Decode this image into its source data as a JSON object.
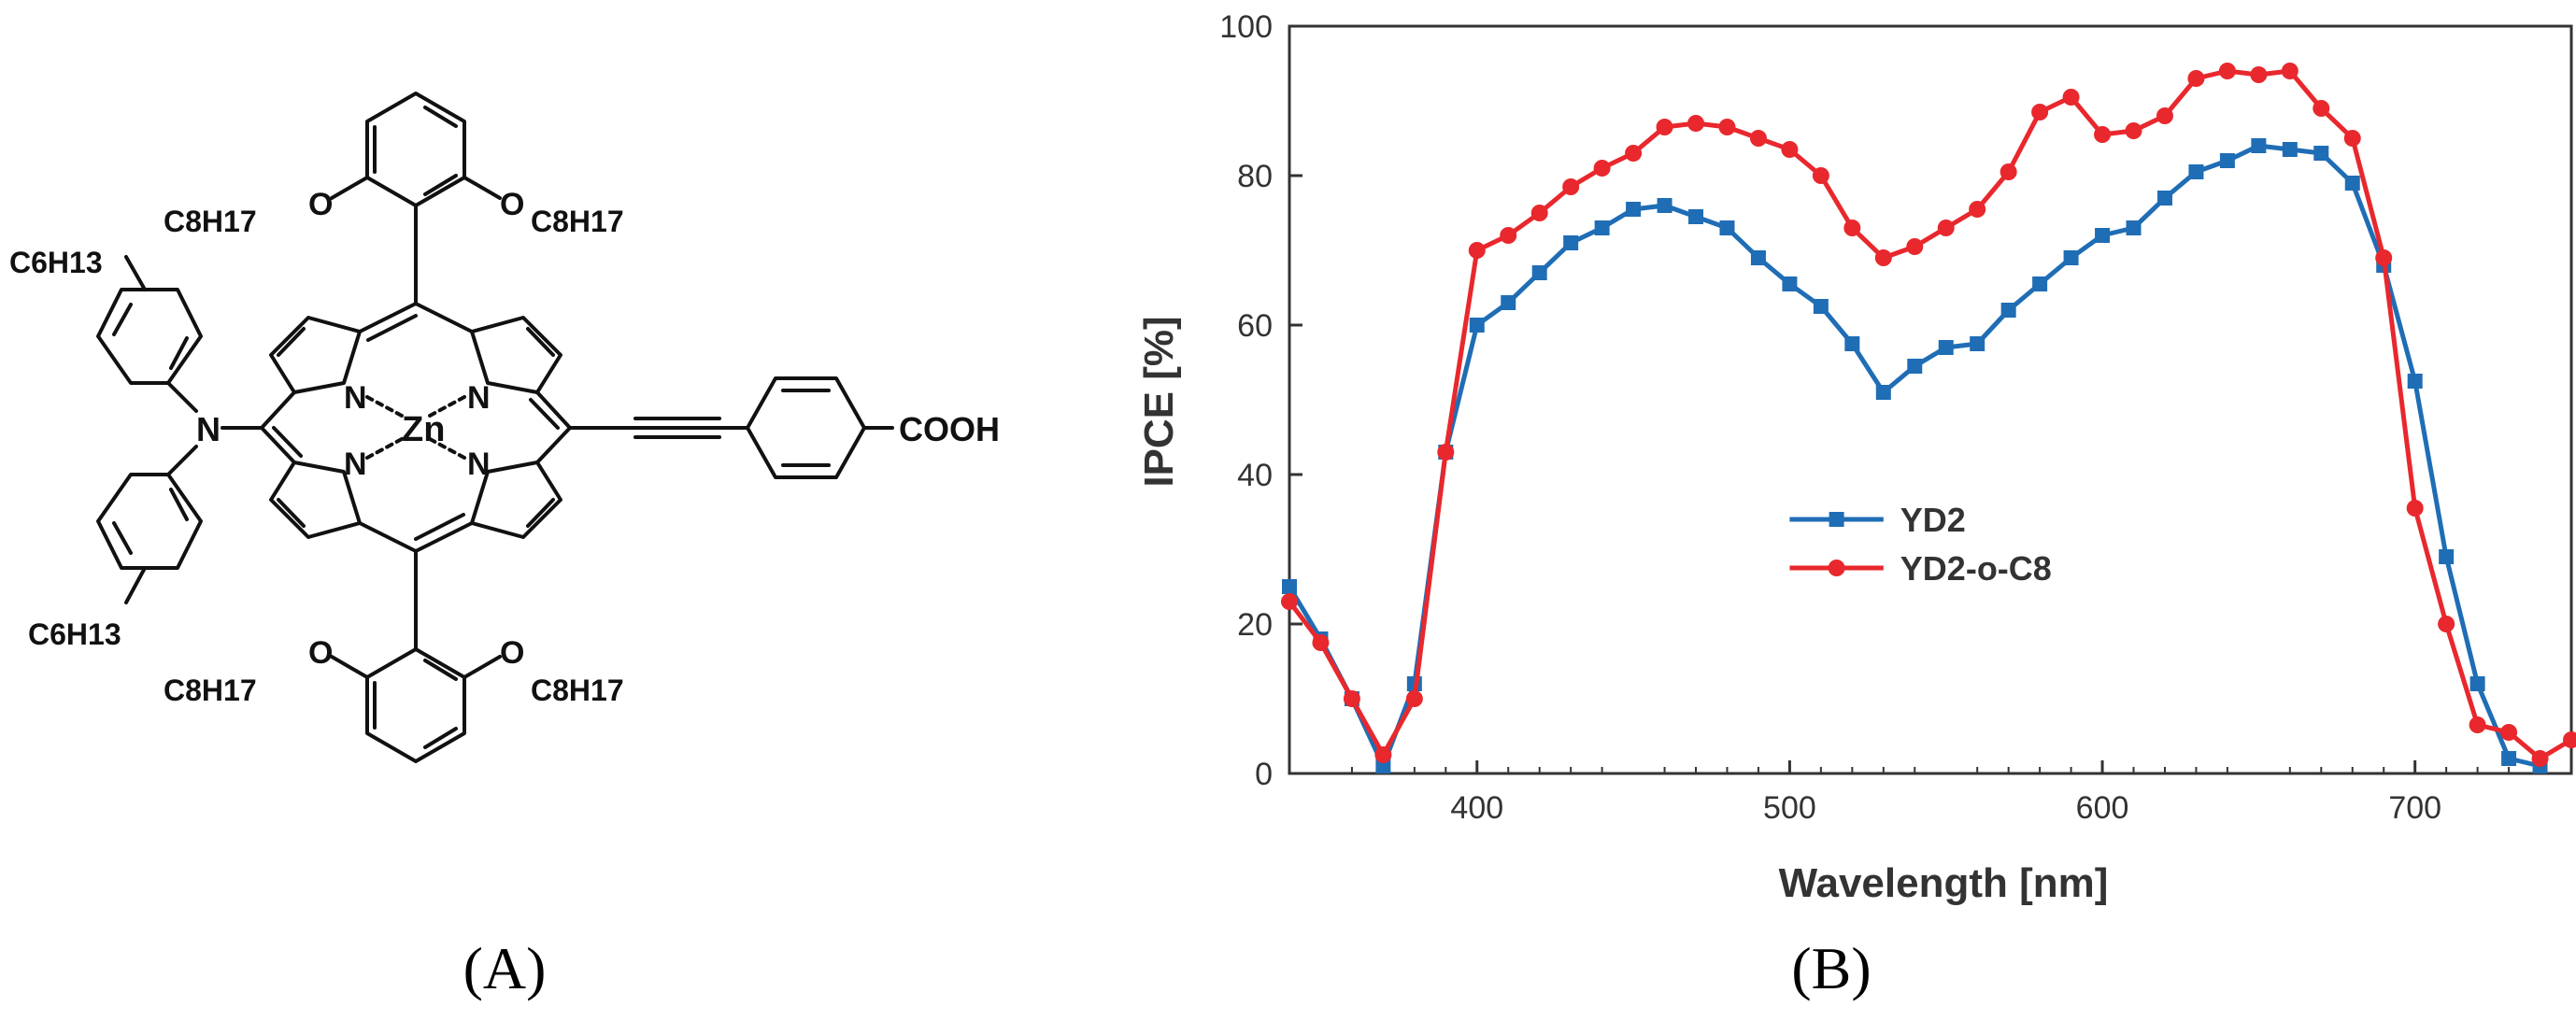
{
  "panels": {
    "a_label": "(A)",
    "b_label": "(B)"
  },
  "molecule": {
    "metal": "Zn",
    "nitrogen": "N",
    "oxygen": "O",
    "amine_n": "N",
    "acid_group": "COOH",
    "alkoxy_chain": "C8H17",
    "alkyl_chain": "C6H13"
  },
  "chart_data": {
    "type": "line",
    "xlabel": "Wavelength [nm]",
    "ylabel": "IPCE [%]",
    "xlim": [
      340,
      750
    ],
    "ylim": [
      0,
      100
    ],
    "x_ticks": [
      400,
      500,
      600,
      700
    ],
    "y_ticks": [
      0,
      20,
      40,
      60,
      80,
      100
    ],
    "legend_placement": "center",
    "grid": false,
    "series": [
      {
        "name": "YD2",
        "color": "#1f6db5",
        "marker": "square",
        "x": [
          340,
          350,
          360,
          370,
          380,
          390,
          400,
          410,
          420,
          430,
          440,
          450,
          460,
          470,
          480,
          490,
          500,
          510,
          520,
          530,
          540,
          550,
          560,
          570,
          580,
          590,
          600,
          610,
          620,
          630,
          640,
          650,
          660,
          670,
          680,
          690,
          700,
          710,
          720,
          730,
          740
        ],
        "y": [
          25,
          18,
          10,
          1,
          12,
          43,
          60,
          63,
          67,
          71,
          73,
          75.5,
          76,
          74.5,
          73,
          69,
          65.5,
          62.5,
          57.5,
          51,
          54.5,
          57,
          57.5,
          62,
          65.5,
          69,
          72,
          73,
          77,
          80.5,
          82,
          84,
          83.5,
          83,
          79,
          68,
          52.5,
          29,
          12,
          2,
          1
        ]
      },
      {
        "name": "YD2-o-C8",
        "color": "#e8282d",
        "marker": "circle",
        "x": [
          340,
          350,
          360,
          370,
          380,
          390,
          400,
          410,
          420,
          430,
          440,
          450,
          460,
          470,
          480,
          490,
          500,
          510,
          520,
          530,
          540,
          550,
          560,
          570,
          580,
          590,
          600,
          610,
          620,
          630,
          640,
          650,
          660,
          670,
          680,
          690,
          700,
          710,
          720,
          730,
          740,
          750
        ],
        "y": [
          23,
          17.5,
          10,
          2.5,
          10,
          43,
          70,
          72,
          75,
          78.5,
          81,
          83,
          86.5,
          87,
          86.5,
          85,
          83.5,
          80,
          73,
          69,
          70.5,
          73,
          75.5,
          80.5,
          88.5,
          90.5,
          85.5,
          86,
          88,
          93,
          94,
          93.5,
          94,
          89,
          85,
          69,
          35.5,
          20,
          6.5,
          5.5,
          2,
          4.5
        ]
      }
    ]
  }
}
